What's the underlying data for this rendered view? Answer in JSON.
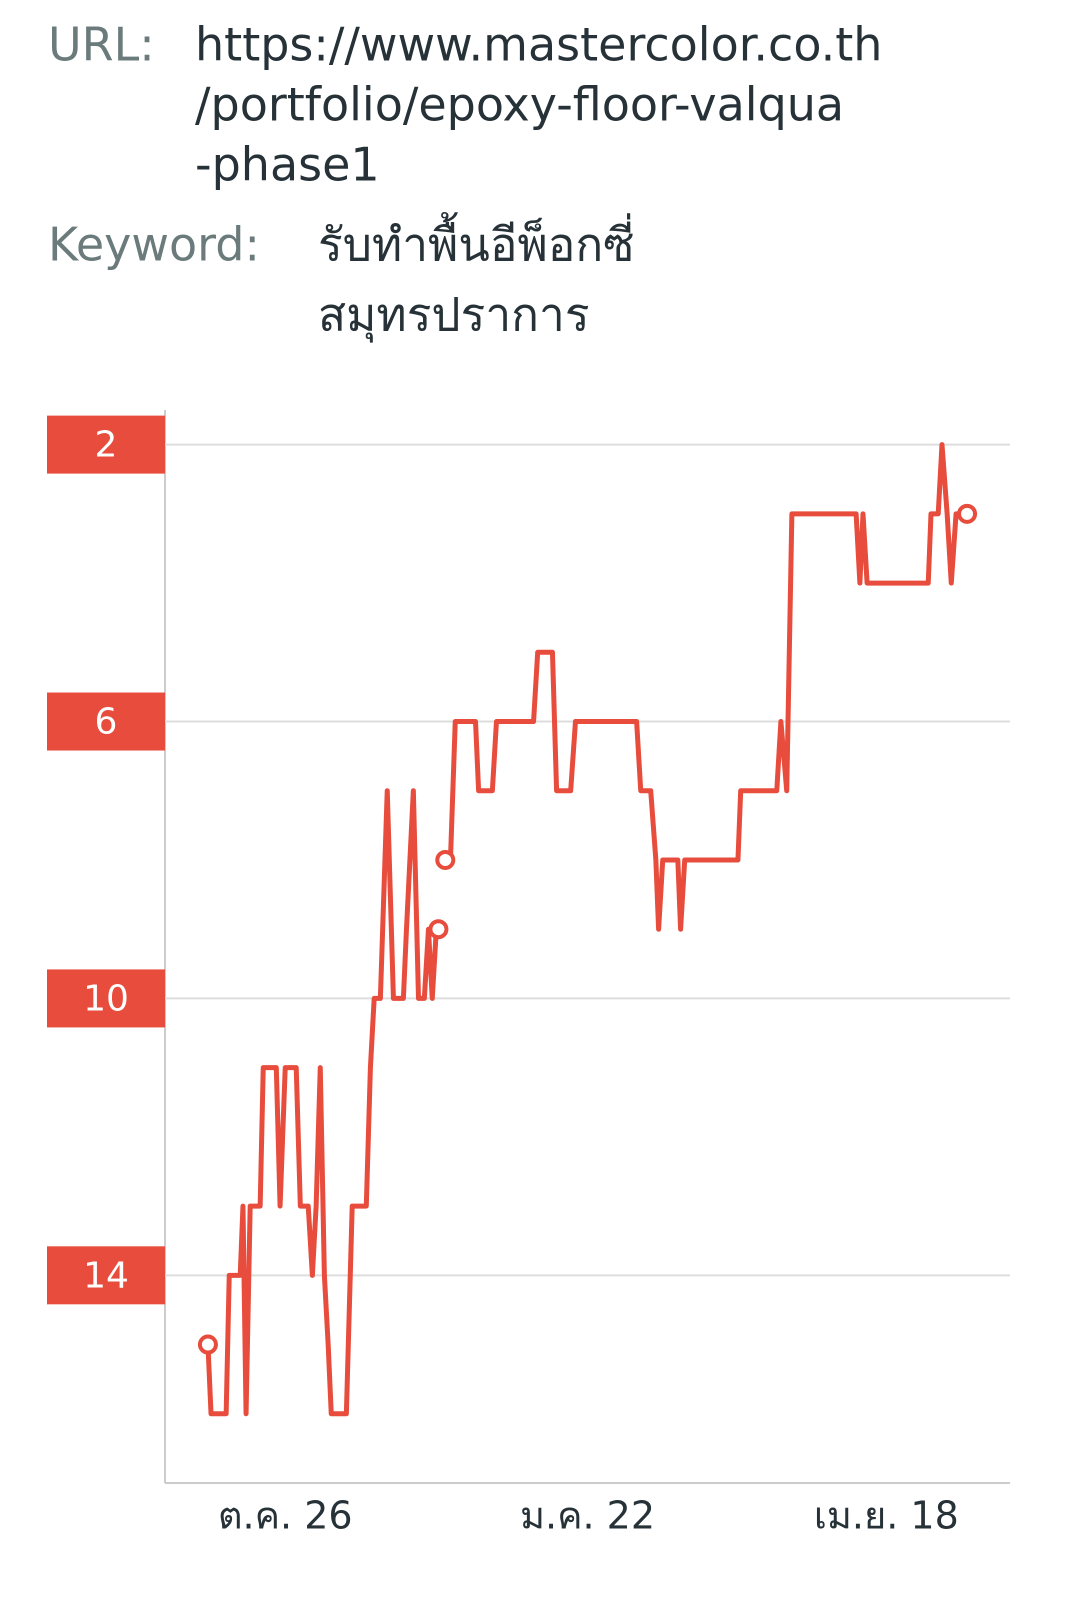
{
  "header": {
    "url_label": "URL:",
    "url_lines": [
      "https://www.mastercolor.co.th",
      "/portfolio/epoxy-floor-valqua",
      "-phase1"
    ],
    "keyword_label": "Keyword:",
    "keyword_lines": [
      "รับทำพื้นอีพ็อกซี่",
      "สมุทรปราการ"
    ]
  },
  "chart_data": {
    "type": "line",
    "xlim": [
      0,
      246
    ],
    "xticks": [
      {
        "value": 35,
        "label": "ต.ค. 26"
      },
      {
        "value": 123,
        "label": "ม.ค. 22"
      },
      {
        "value": 210,
        "label": "เม.ย. 18"
      }
    ],
    "ylim": [
      17,
      1.5
    ],
    "yticks": [
      2,
      6,
      10,
      14
    ],
    "grid": true,
    "series": [
      {
        "color": "#e74c3c",
        "x": [
          12.5,
          13.4,
          17.8,
          18.7,
          21.9,
          22.7,
          23.6,
          24.8,
          27.7,
          28.6,
          32.4,
          33.5,
          35.0,
          38.2,
          39.4,
          41.7,
          42.9,
          44.0,
          45.2,
          46.4,
          47.5,
          48.4,
          52.8,
          54.5,
          58.6,
          59.8,
          60.9,
          62.7,
          64.7,
          66.5,
          69.4,
          70.3,
          72.3,
          73.8,
          75.5,
          76.7,
          77.8,
          79.0,
          79.6,
          null,
          81.6,
          83.1,
          84.5,
          90.4,
          91.3,
          95.3,
          96.5,
          107.3,
          108.5,
          112.8,
          114.0,
          118.1,
          119.5,
          137.3,
          138.5,
          141.4,
          142.9,
          143.7,
          144.9,
          149.3,
          150.1,
          151.3,
          166.8,
          167.6,
          178.1,
          179.3,
          181.0,
          182.5,
          201.2,
          202.3,
          203.2,
          204.4,
          222.2,
          223.0,
          225.1,
          226.2,
          227.7,
          228.9,
          230.3,
          233.5
        ],
        "values": [
          15,
          16,
          16,
          14,
          14,
          13,
          16,
          13,
          13,
          11,
          11,
          13,
          11,
          11,
          13,
          13,
          14,
          13,
          11,
          14,
          15,
          16,
          16,
          13,
          13,
          11,
          10,
          10,
          7,
          10,
          10,
          9,
          7,
          10,
          10,
          9,
          10,
          9,
          9,
          null,
          8,
          8,
          6,
          6,
          7,
          7,
          6,
          6,
          5,
          5,
          7,
          7,
          6,
          6,
          7,
          7,
          8,
          9,
          8,
          8,
          9,
          8,
          8,
          7,
          7,
          6,
          7,
          3,
          3,
          4,
          3,
          4,
          4,
          3,
          3,
          2,
          3,
          4,
          3,
          3
        ]
      }
    ]
  }
}
